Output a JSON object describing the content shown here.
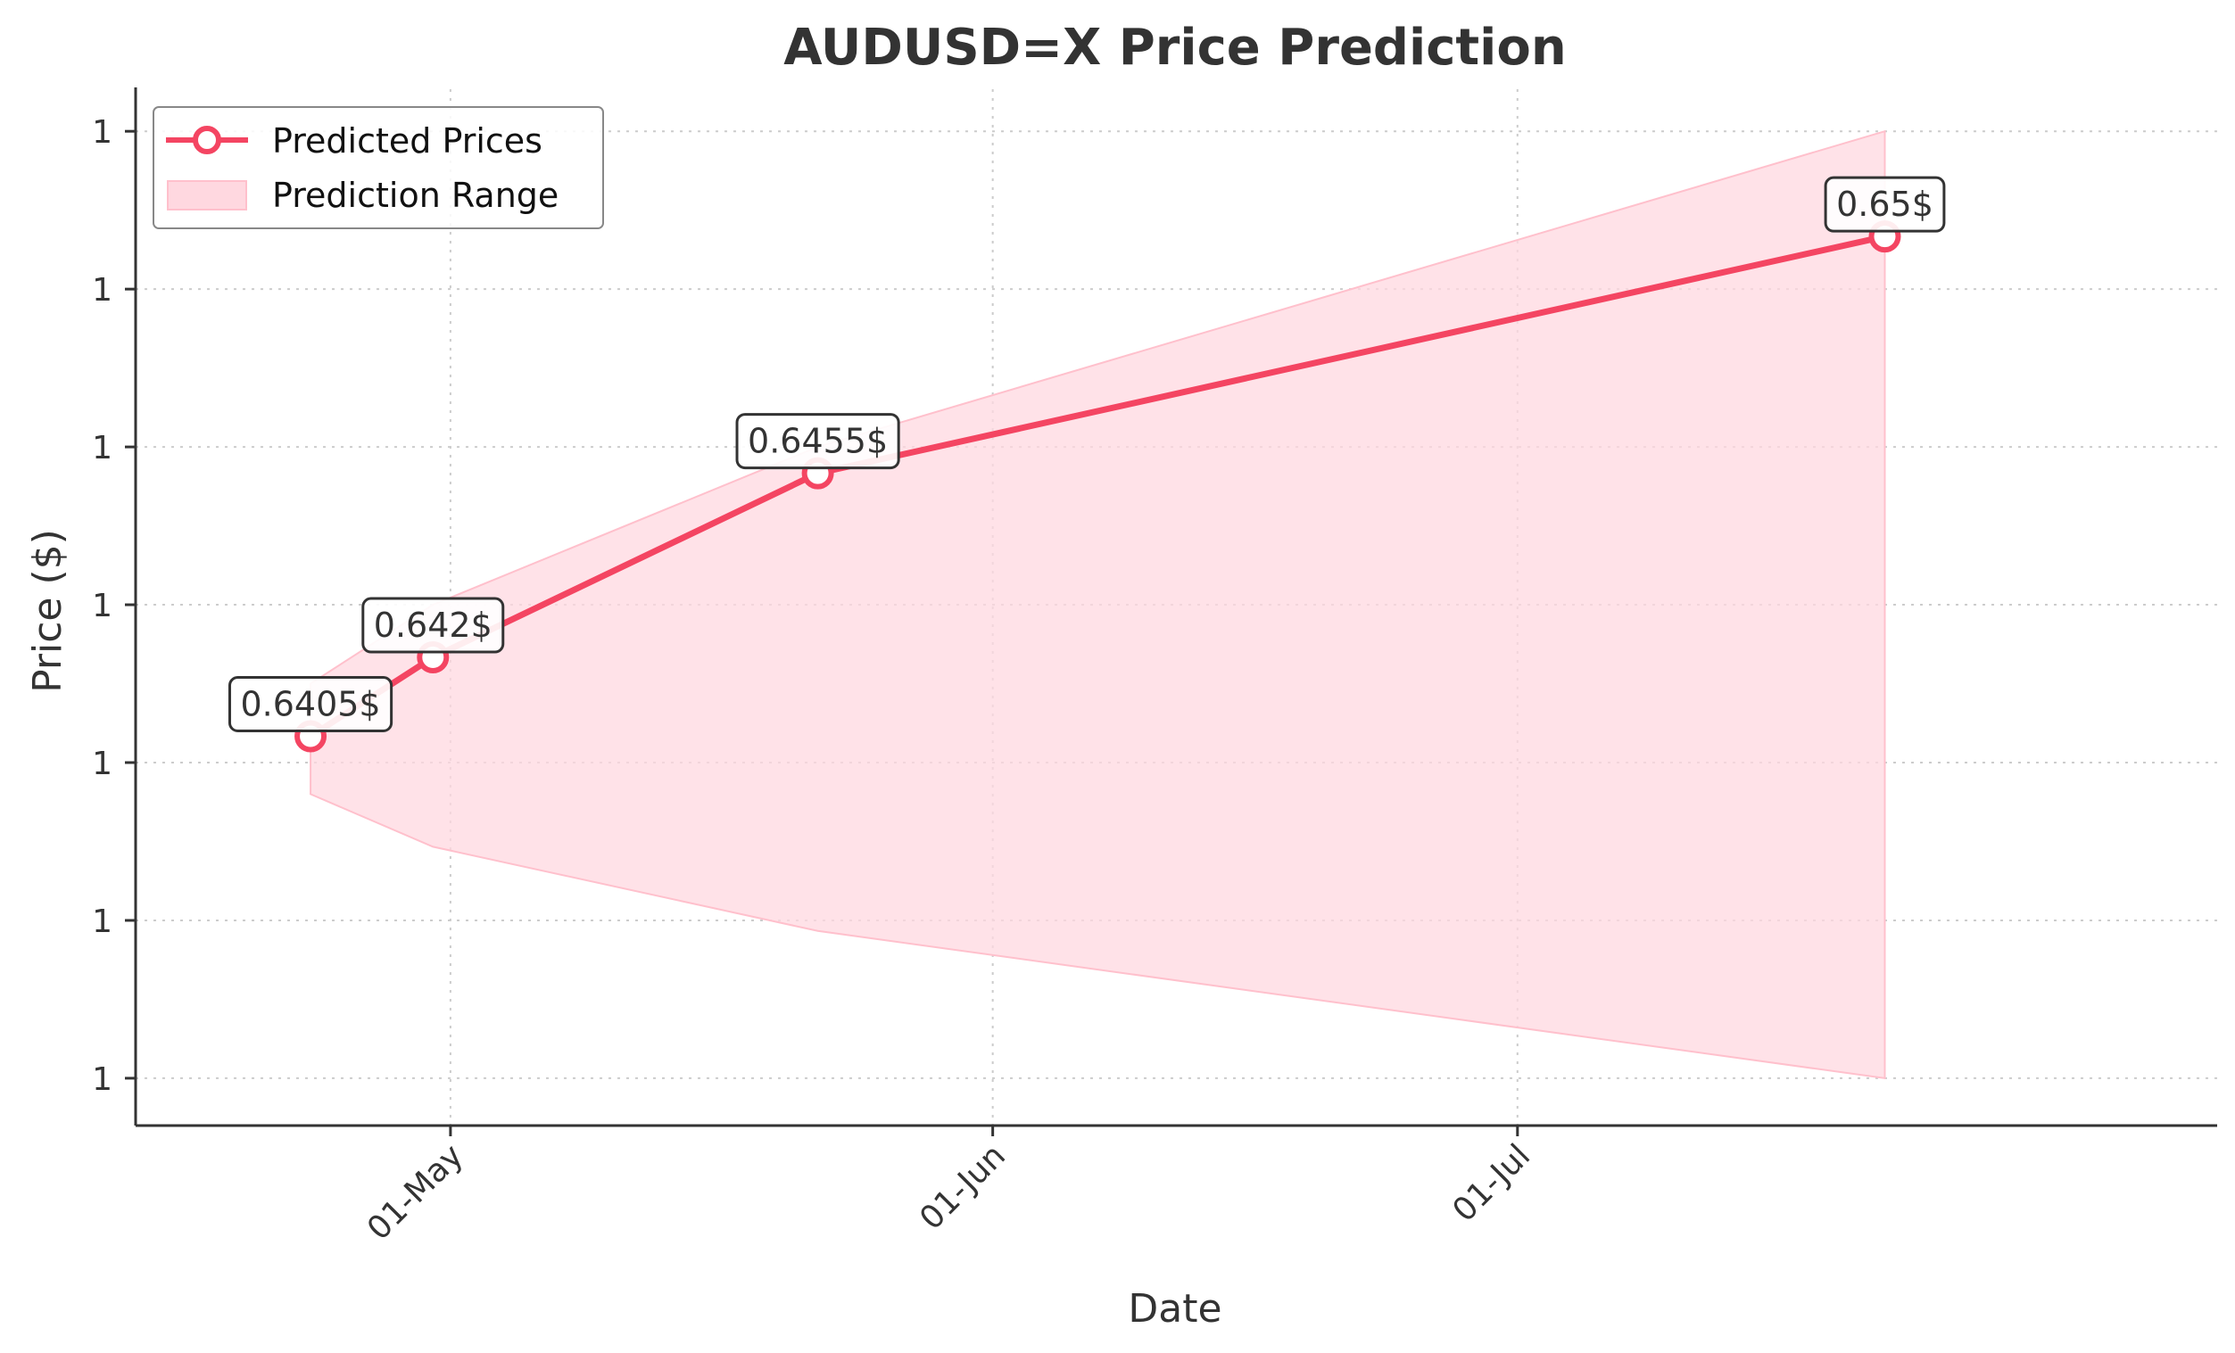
{
  "chart_data": {
    "type": "line",
    "title": "AUDUSD=X Price Prediction",
    "xlabel": "Date",
    "ylabel": "Price ($)",
    "x_ticks": [
      {
        "date": "2024-05-01",
        "label": "01-May"
      },
      {
        "date": "2024-06-01",
        "label": "01-Jun"
      },
      {
        "date": "2024-07-01",
        "label": "01-Jul"
      }
    ],
    "y_ticks": [
      0.634,
      0.637,
      0.64,
      0.643,
      0.646,
      0.649,
      0.652
    ],
    "y_tick_labels": [
      "1",
      "1",
      "1",
      "1",
      "1",
      "1",
      "1"
    ],
    "xlim": [
      "2024-04-13",
      "2024-08-10"
    ],
    "ylim": [
      0.6331,
      0.6528
    ],
    "grid": true,
    "legend_position": "upper-left",
    "colors": {
      "line": "#f44562",
      "band_fill": "#ffd8e0",
      "band_edge": "#ffc0cc",
      "grid": "#cccccc",
      "text": "#333333"
    },
    "series": [
      {
        "name": "Predicted Prices",
        "x": [
          "2024-04-23",
          "2024-04-30",
          "2024-05-22",
          "2024-07-22"
        ],
        "y": [
          0.6405,
          0.642,
          0.6455,
          0.65
        ],
        "labels": [
          "0.6405$",
          "0.642$",
          "0.6455$",
          "0.65$"
        ]
      }
    ],
    "prediction_range": {
      "name": "Prediction Range",
      "x": [
        "2024-04-23",
        "2024-04-30",
        "2024-05-22",
        "2024-07-22"
      ],
      "lower": [
        0.6394,
        0.6384,
        0.6368,
        0.634
      ],
      "upper": [
        0.6415,
        0.643,
        0.646,
        0.652
      ]
    }
  }
}
